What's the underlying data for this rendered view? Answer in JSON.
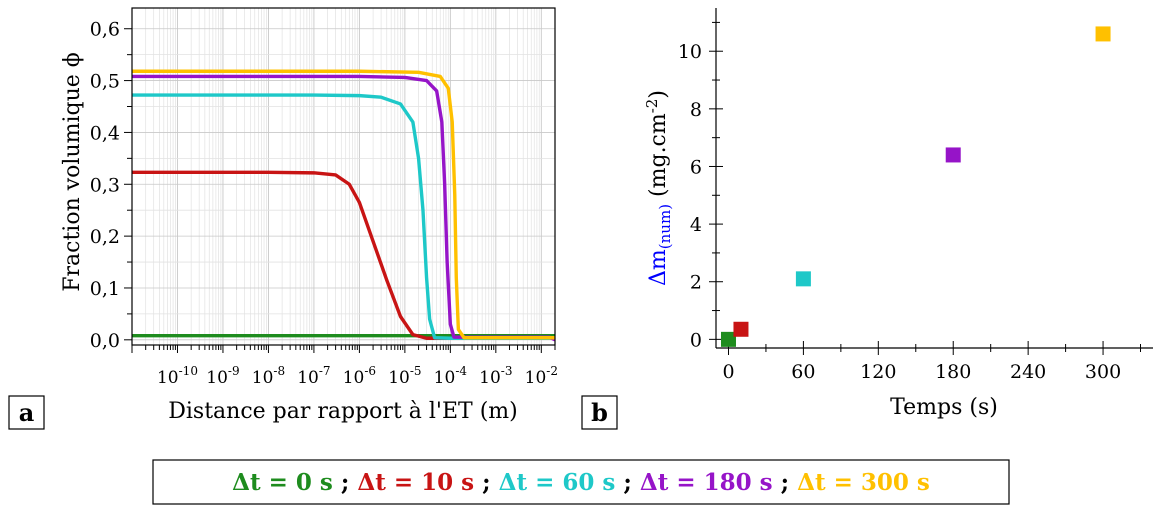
{
  "colors": {
    "t0": "#1e8c1e",
    "t10": "#c81414",
    "t60": "#1ec8c8",
    "t180": "#9614c8",
    "t300": "#ffc000",
    "ylabel_accent": "#0000ff"
  },
  "panels": {
    "a": "a",
    "b": "b"
  },
  "legend": {
    "entries": [
      {
        "label": "Δt = 0 s",
        "color": "#1e8c1e"
      },
      {
        "label": "Δt = 10 s",
        "color": "#c81414"
      },
      {
        "label": "Δt = 60 s",
        "color": "#1ec8c8"
      },
      {
        "label": "Δt = 180 s",
        "color": "#9614c8"
      },
      {
        "label": "Δt = 300 s",
        "color": "#ffc000"
      }
    ],
    "separator": " ; "
  },
  "chart_data": [
    {
      "panel": "a",
      "type": "line",
      "xlabel": "Distance par rapport à l'ET (m)",
      "ylabel": "Fraction volumique ϕ",
      "xscale": "log",
      "xlim": [
        1e-11,
        0.02
      ],
      "ylim": [
        -0.01,
        0.64
      ],
      "grid": true,
      "yticks": [
        "0,0",
        "0,1",
        "0,2",
        "0,3",
        "0,4",
        "0,5",
        "0,6"
      ],
      "ytick_values": [
        0.0,
        0.1,
        0.2,
        0.3,
        0.4,
        0.5,
        0.6
      ],
      "xtick_exponents": [
        -10,
        -9,
        -8,
        -7,
        -6,
        -5,
        -4,
        -3,
        -2
      ],
      "series": [
        {
          "name": "Δt = 0 s",
          "color": "#1e8c1e",
          "x": [
            1e-11,
            1e-06,
            0.0001,
            0.02
          ],
          "y": [
            0.008,
            0.008,
            0.008,
            0.008
          ]
        },
        {
          "name": "Δt = 10 s",
          "color": "#c81414",
          "x": [
            1e-11,
            1e-08,
            1e-07,
            3e-07,
            6e-07,
            1e-06,
            2e-06,
            4e-06,
            8e-06,
            1.5e-05,
            3e-05,
            0.0001,
            0.02
          ],
          "y": [
            0.323,
            0.323,
            0.322,
            0.318,
            0.3,
            0.265,
            0.19,
            0.115,
            0.045,
            0.01,
            0.003,
            0.003,
            0.003
          ]
        },
        {
          "name": "Δt = 60 s",
          "color": "#1ec8c8",
          "x": [
            1e-11,
            1e-07,
            1e-06,
            3e-06,
            8e-06,
            1.5e-05,
            2e-05,
            2.5e-05,
            3e-05,
            3.5e-05,
            4.5e-05,
            0.0001,
            0.02
          ],
          "y": [
            0.472,
            0.472,
            0.471,
            0.468,
            0.455,
            0.42,
            0.35,
            0.25,
            0.12,
            0.04,
            0.004,
            0.003,
            0.003
          ]
        },
        {
          "name": "Δt = 180 s",
          "color": "#9614c8",
          "x": [
            1e-11,
            1e-06,
            1e-05,
            3e-05,
            5e-05,
            6.5e-05,
            7.5e-05,
            8.5e-05,
            0.0001,
            0.00012,
            0.015,
            0.02
          ],
          "y": [
            0.508,
            0.508,
            0.506,
            0.5,
            0.48,
            0.42,
            0.3,
            0.15,
            0.03,
            0.005,
            0.005,
            0.0
          ]
        },
        {
          "name": "Δt = 300 s",
          "color": "#ffc000",
          "x": [
            1e-11,
            1e-06,
            2e-05,
            6e-05,
            9e-05,
            0.00011,
            0.000125,
            0.000135,
            0.00015,
            0.0002,
            0.02
          ],
          "y": [
            0.518,
            0.518,
            0.516,
            0.508,
            0.485,
            0.42,
            0.28,
            0.12,
            0.02,
            0.004,
            0.004
          ]
        }
      ]
    },
    {
      "panel": "b",
      "type": "scatter",
      "xlabel": "Temps (s)",
      "ylabel_accent": "Δm",
      "ylabel_sub": "(num)",
      "ylabel_rest": " (mg.cm",
      "ylabel_sup": "-2",
      "ylabel_end": ")",
      "xlim": [
        -10,
        340
      ],
      "ylim": [
        -0.3,
        11.5
      ],
      "grid": false,
      "xticks": [
        0,
        60,
        120,
        180,
        240,
        300
      ],
      "yticks": [
        0,
        2,
        4,
        6,
        8,
        10
      ],
      "points": [
        {
          "x": 0,
          "y": 0.0,
          "color": "#1e8c1e"
        },
        {
          "x": 10,
          "y": 0.35,
          "color": "#c81414"
        },
        {
          "x": 60,
          "y": 2.1,
          "color": "#1ec8c8"
        },
        {
          "x": 180,
          "y": 6.4,
          "color": "#9614c8"
        },
        {
          "x": 300,
          "y": 10.6,
          "color": "#ffc000"
        }
      ]
    }
  ]
}
